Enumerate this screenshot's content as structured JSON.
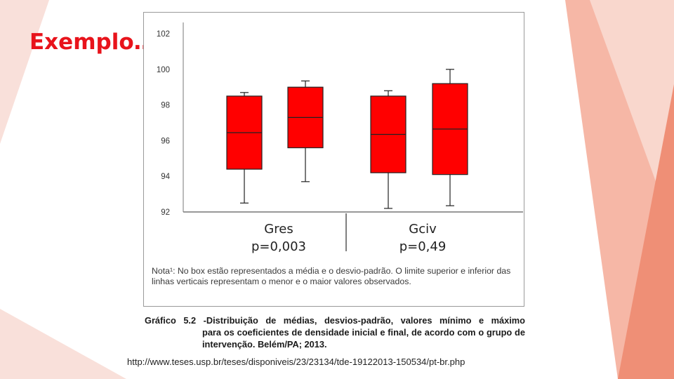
{
  "slide": {
    "title": "Exemplo…",
    "accent_color": "#e8131b"
  },
  "chart_data": {
    "type": "box",
    "ylim": [
      92,
      102
    ],
    "yticks": [
      92,
      94,
      96,
      98,
      100,
      102
    ],
    "box_color": "#ff0000",
    "boxes": [
      {
        "group": 0,
        "min": 92.5,
        "q1": 94.4,
        "median": 96.45,
        "q3": 98.5,
        "max": 98.7
      },
      {
        "group": 0,
        "min": 93.7,
        "q1": 95.6,
        "median": 97.3,
        "q3": 99.0,
        "max": 99.35
      },
      {
        "group": 1,
        "min": 92.2,
        "q1": 94.2,
        "median": 96.35,
        "q3": 98.5,
        "max": 98.8
      },
      {
        "group": 1,
        "min": 92.35,
        "q1": 94.1,
        "median": 96.65,
        "q3": 99.2,
        "max": 100.0
      }
    ],
    "groups": [
      {
        "name": "Gres",
        "p_label": "p=0,003"
      },
      {
        "name": "Gciv",
        "p_label": "p=0,49"
      }
    ],
    "note": "Nota¹: No box estão representados  a média e o desvio-padrão. O limite superior e inferior das linhas verticais representam o menor e o maior valores observados.",
    "caption_head": "Gráfico 5.2 -Distribuição de médias, desvios-padrão, valores mínimo e máximo",
    "caption_rest": "para os coeficientes de densidade inicial e final, de acordo com o grupo de intervenção. Belém/PA; 2013."
  },
  "source_url": "http://www.teses.usp.br/teses/disponiveis/23/23134/tde-19122013-150534/pt-br.php"
}
